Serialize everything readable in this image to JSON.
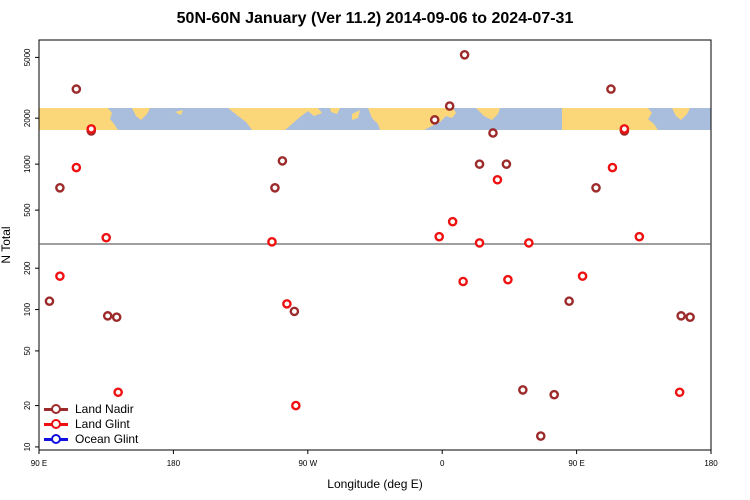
{
  "chart_data": {
    "type": "scatter",
    "title": "50N-60N January (Ver 11.2)   2014-09-06 to 2024-07-31",
    "xlabel": "Longitude (deg E)",
    "ylabel": "N Total",
    "x_scale": "longitude_circular",
    "xlim": [
      90,
      540
    ],
    "x_ticks": [
      {
        "value": 90,
        "label": "90 E"
      },
      {
        "value": 180,
        "label": "180"
      },
      {
        "value": 270,
        "label": "90 W"
      },
      {
        "value": 360,
        "label": "0"
      },
      {
        "value": 450,
        "label": "90 E"
      },
      {
        "value": 540,
        "label": "180"
      }
    ],
    "y_scale": "log_split",
    "y_panels": [
      {
        "name": "upper",
        "ylim": [
          300,
          6500
        ],
        "ticks": [
          500,
          1000,
          2000,
          5000
        ]
      },
      {
        "name": "lower",
        "ylim": [
          9.5,
          300
        ],
        "ticks": [
          10,
          20,
          50,
          100,
          200
        ]
      }
    ],
    "map_band": {
      "ylim": [
        1550,
        2200
      ],
      "ocean_color": "#a8bedc",
      "land_color": "#fcd77a"
    },
    "legend": {
      "position": "bottom-left"
    },
    "series": [
      {
        "name": "Land Nadir",
        "color": "#9c2a2a",
        "points": [
          [
            97,
            115
          ],
          [
            104,
            700
          ],
          [
            115,
            3100
          ],
          [
            125,
            1650
          ],
          [
            136,
            90
          ],
          [
            142,
            88
          ],
          [
            248,
            700
          ],
          [
            253,
            1050
          ],
          [
            261,
            97
          ],
          [
            355,
            1950
          ],
          [
            365,
            2400
          ],
          [
            375,
            5200
          ],
          [
            385,
            1000
          ],
          [
            394,
            1600
          ],
          [
            403,
            1000
          ],
          [
            414,
            26
          ],
          [
            426,
            12
          ],
          [
            435,
            24
          ],
          [
            445,
            115
          ],
          [
            463,
            700
          ],
          [
            473,
            3100
          ],
          [
            482,
            1650
          ],
          [
            520,
            90
          ],
          [
            526,
            88
          ]
        ]
      },
      {
        "name": "Land Glint",
        "color": "#ee1111",
        "points": [
          [
            104,
            175
          ],
          [
            115,
            950
          ],
          [
            125,
            1700
          ],
          [
            135,
            330
          ],
          [
            143,
            25
          ],
          [
            246,
            310
          ],
          [
            256,
            110
          ],
          [
            262,
            20
          ],
          [
            358,
            335
          ],
          [
            367,
            420
          ],
          [
            374,
            160
          ],
          [
            385,
            305
          ],
          [
            397,
            790
          ],
          [
            404,
            165
          ],
          [
            418,
            305
          ],
          [
            454,
            175
          ],
          [
            474,
            950
          ],
          [
            482,
            1700
          ],
          [
            492,
            335
          ],
          [
            519,
            25
          ]
        ]
      },
      {
        "name": "Ocean Glint",
        "color": "#1111dd",
        "points": []
      }
    ]
  }
}
